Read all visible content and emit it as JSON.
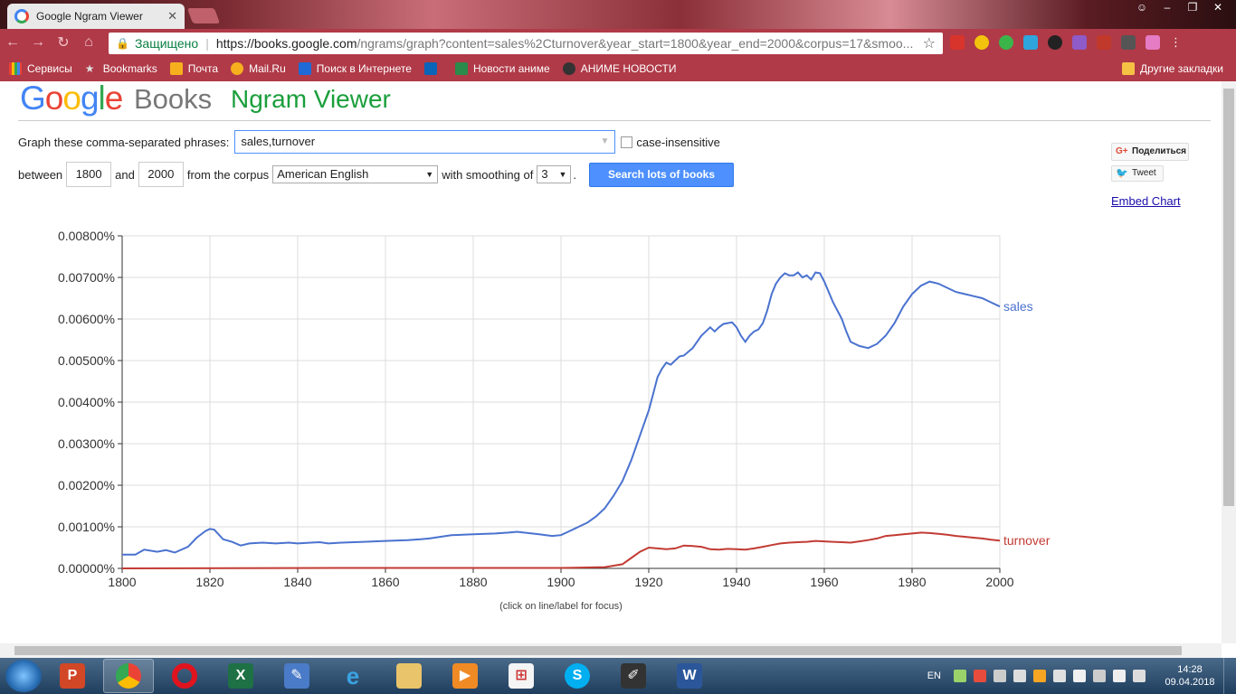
{
  "browser": {
    "tab_title": "Google Ngram Viewer",
    "tab_close": "✕",
    "secure_label": "Защищено",
    "url_host": "https://books.google.com",
    "url_rest": "/ngrams/graph?content=sales%2Cturnover&year_start=1800&year_end=2000&corpus=17&smoo...",
    "bookmarks": [
      "Сервисы",
      "Bookmarks",
      "Почта",
      "Mail.Ru",
      "Поиск в Интернете",
      "Новости аниме",
      "АНИМЕ НОВОСТИ"
    ],
    "other_bookmarks": "Другие закладки"
  },
  "page": {
    "logo_google": [
      "G",
      "o",
      "o",
      "g",
      "l",
      "e"
    ],
    "logo_books": "Books",
    "title": "Ngram Viewer",
    "phrases_label": "Graph these comma-separated phrases:",
    "phrases_value": "sales,turnover",
    "case_insensitive": "case-insensitive",
    "between_label": "between",
    "year_start": "1800",
    "and_label": "and",
    "year_end": "2000",
    "corpus_label": "from the corpus",
    "corpus_value": "American English",
    "smoothing_label": "with smoothing of",
    "smoothing_value": "3",
    "period": ".",
    "search_button": "Search lots of books",
    "share_button": "Поделиться",
    "tweet_button": "Tweet",
    "embed_link": "Embed Chart",
    "chart_hint": "(click on line/label for focus)"
  },
  "taskbar": {
    "lang": "EN",
    "time": "14:28",
    "date": "09.04.2018"
  },
  "colors": {
    "sales": "#4a72cf",
    "turnover": "#c23b33",
    "chrome": "#b03a48"
  },
  "chart_data": {
    "type": "line",
    "x_range": [
      1800,
      2000
    ],
    "ylim": [
      0,
      0.008
    ],
    "y_ticks": [
      "0.00000%",
      "0.00100%",
      "0.00200%",
      "0.00300%",
      "0.00400%",
      "0.00500%",
      "0.00600%",
      "0.00700%",
      "0.00800%"
    ],
    "x_ticks": [
      "1800",
      "1820",
      "1840",
      "1860",
      "1880",
      "1900",
      "1920",
      "1940",
      "1960",
      "1980",
      "2000"
    ],
    "grid": true,
    "series": [
      {
        "name": "sales",
        "x": [
          1800,
          1803,
          1805,
          1808,
          1810,
          1812,
          1815,
          1817,
          1819,
          1820,
          1821,
          1823,
          1825,
          1827,
          1829,
          1832,
          1835,
          1838,
          1840,
          1843,
          1845,
          1847,
          1850,
          1855,
          1860,
          1865,
          1868,
          1870,
          1875,
          1880,
          1885,
          1888,
          1890,
          1895,
          1898,
          1900,
          1902,
          1904,
          1906,
          1908,
          1910,
          1912,
          1914,
          1916,
          1918,
          1920,
          1921,
          1922,
          1923,
          1924,
          1925,
          1926,
          1927,
          1928,
          1930,
          1932,
          1934,
          1935,
          1936,
          1937,
          1938,
          1939,
          1940,
          1941,
          1942,
          1943,
          1944,
          1945,
          1946,
          1947,
          1948,
          1949,
          1950,
          1951,
          1952,
          1953,
          1954,
          1955,
          1956,
          1957,
          1958,
          1959,
          1960,
          1962,
          1964,
          1965,
          1966,
          1968,
          1970,
          1972,
          1974,
          1976,
          1978,
          1980,
          1982,
          1984,
          1986,
          1988,
          1990,
          1992,
          1994,
          1996,
          1998,
          2000
        ],
        "values": [
          0.00033,
          0.00033,
          0.00045,
          0.0004,
          0.00044,
          0.00038,
          0.00052,
          0.00074,
          0.0009,
          0.00095,
          0.00093,
          0.0007,
          0.00064,
          0.00055,
          0.0006,
          0.00062,
          0.0006,
          0.00062,
          0.0006,
          0.00062,
          0.00063,
          0.0006,
          0.00062,
          0.00064,
          0.00066,
          0.00068,
          0.0007,
          0.00072,
          0.0008,
          0.00082,
          0.00084,
          0.00086,
          0.00088,
          0.00082,
          0.00078,
          0.0008,
          0.0009,
          0.001,
          0.0011,
          0.00125,
          0.00145,
          0.00175,
          0.0021,
          0.0026,
          0.0032,
          0.0038,
          0.0042,
          0.0046,
          0.0048,
          0.00495,
          0.0049,
          0.005,
          0.0051,
          0.00512,
          0.0053,
          0.0056,
          0.0058,
          0.0057,
          0.0058,
          0.00588,
          0.0059,
          0.00592,
          0.0058,
          0.0056,
          0.00545,
          0.0056,
          0.0057,
          0.00575,
          0.0059,
          0.0062,
          0.0066,
          0.00685,
          0.007,
          0.0071,
          0.00705,
          0.00705,
          0.00712,
          0.007,
          0.00705,
          0.00695,
          0.00712,
          0.0071,
          0.0069,
          0.0064,
          0.006,
          0.0057,
          0.00545,
          0.00535,
          0.0053,
          0.0054,
          0.0056,
          0.0059,
          0.0063,
          0.0066,
          0.0068,
          0.0069,
          0.00685,
          0.00675,
          0.00665,
          0.0066,
          0.00655,
          0.0065,
          0.0064,
          0.0063
        ]
      },
      {
        "name": "turnover",
        "x": [
          1800,
          1850,
          1900,
          1910,
          1914,
          1916,
          1918,
          1920,
          1922,
          1924,
          1926,
          1928,
          1930,
          1932,
          1934,
          1936,
          1938,
          1940,
          1942,
          1944,
          1946,
          1948,
          1950,
          1952,
          1954,
          1956,
          1958,
          1960,
          1962,
          1964,
          1966,
          1968,
          1970,
          1972,
          1974,
          1976,
          1978,
          1980,
          1982,
          1984,
          1986,
          1988,
          1990,
          1992,
          1994,
          1996,
          1998,
          2000
        ],
        "values": [
          0.0,
          1e-05,
          1e-05,
          3e-05,
          0.0001,
          0.00025,
          0.0004,
          0.0005,
          0.00048,
          0.00046,
          0.00048,
          0.00055,
          0.00054,
          0.00052,
          0.00046,
          0.00045,
          0.00047,
          0.00046,
          0.00045,
          0.00048,
          0.00052,
          0.00056,
          0.0006,
          0.00062,
          0.00063,
          0.00064,
          0.00066,
          0.00065,
          0.00064,
          0.00063,
          0.00062,
          0.00065,
          0.00068,
          0.00072,
          0.00078,
          0.0008,
          0.00082,
          0.00084,
          0.00086,
          0.00085,
          0.00083,
          0.00081,
          0.00078,
          0.00076,
          0.00074,
          0.00072,
          0.00069,
          0.00067
        ]
      }
    ]
  }
}
